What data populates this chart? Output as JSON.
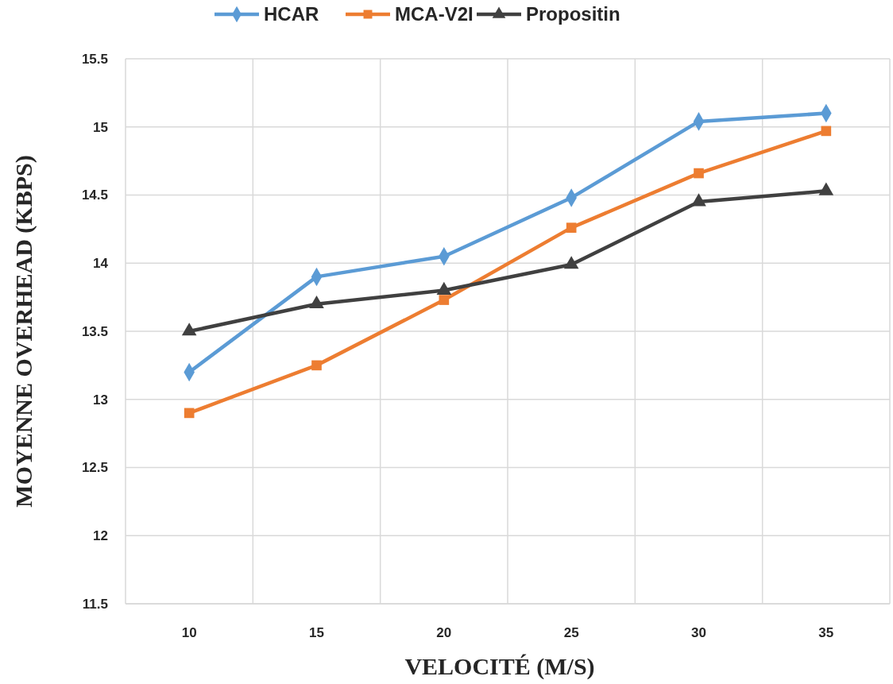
{
  "chart_data": {
    "type": "line",
    "xlabel": "VELOCITÉ (M/S)",
    "ylabel": "MOYENNE OVERHEAD (KBPS)",
    "categories": [
      "10",
      "15",
      "20",
      "25",
      "30",
      "35"
    ],
    "series": [
      {
        "name": "HCAR",
        "color": "#5b9bd5",
        "marker": "diamond",
        "values": [
          13.2,
          13.9,
          14.05,
          14.48,
          15.04,
          15.1
        ]
      },
      {
        "name": "MCA-V2I",
        "color": "#ed7d31",
        "marker": "square",
        "values": [
          12.9,
          13.25,
          13.73,
          14.26,
          14.66,
          14.97
        ]
      },
      {
        "name": "Propositin",
        "color": "#404040",
        "marker": "triangle",
        "values": [
          13.5,
          13.7,
          13.8,
          13.99,
          14.45,
          14.53
        ]
      }
    ],
    "ylim": [
      11.5,
      15.5
    ],
    "yticks": [
      11.5,
      12,
      12.5,
      13,
      13.5,
      14,
      14.5,
      15,
      15.5
    ],
    "grid": true,
    "legend": "top",
    "line_style": "solid"
  }
}
